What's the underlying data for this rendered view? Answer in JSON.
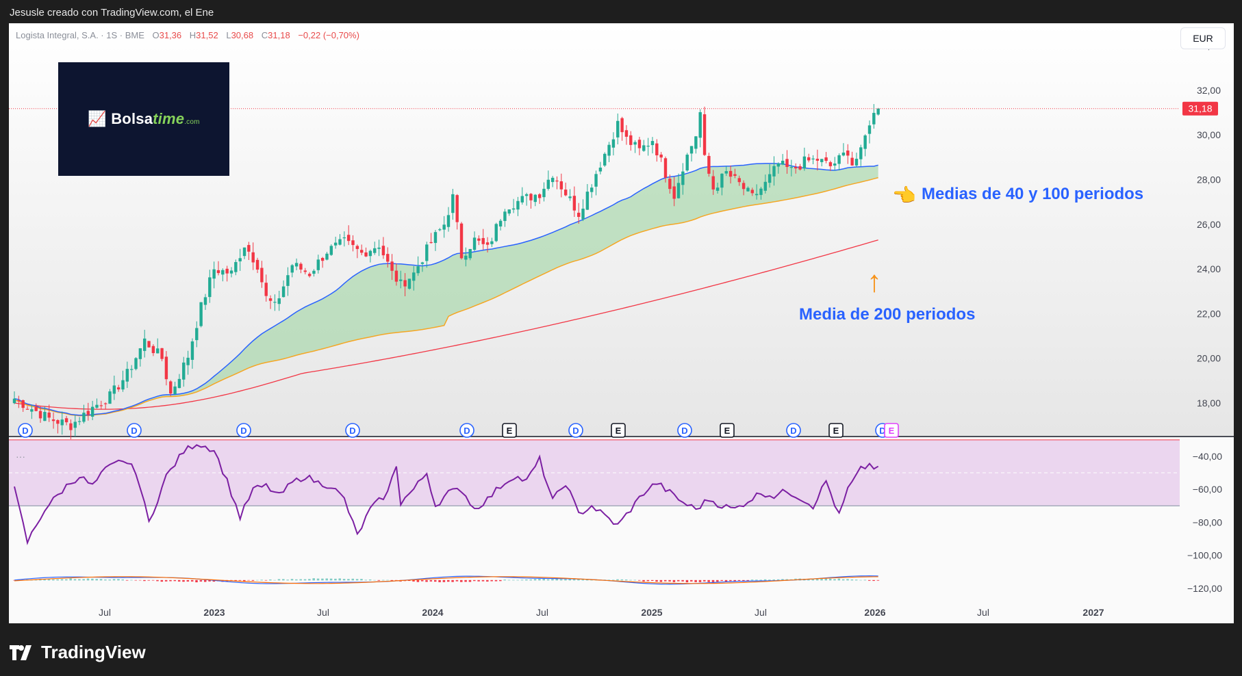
{
  "header": {
    "caption": "Jesusle creado con TradingView.com, el Ene"
  },
  "legend": {
    "symbol": "Logista Integral, S.A. · 1S · BME",
    "open_key": "O",
    "open": "31,36",
    "high_key": "H",
    "high": "31,52",
    "low_key": "L",
    "low": "30,68",
    "close_key": "C",
    "close": "31,18",
    "change": "−0,22 (−0,70%)"
  },
  "currency": "EUR",
  "last_price_label": "31,18",
  "logo": {
    "brand_main": "Bolsa",
    "brand_accent": "time",
    "brand_suffix": ".com"
  },
  "annotations": {
    "ma_40_100": "Medias de 40 y 100 periodos",
    "ma_200": "Media de 200 periodos"
  },
  "footer": {
    "brand": "TradingView"
  },
  "colors": {
    "up": "#22ab94",
    "down": "#f23645",
    "ma40": "#2962ff",
    "ma100": "#f5a623",
    "ma200": "#f23645",
    "fill": "#a5d6a7",
    "rsi": "#7b1fa2",
    "rsi_band": "#e1bee7",
    "annotation": "#2962ff"
  },
  "chart_data": [
    {
      "type": "candlestick",
      "title": "",
      "x_ticks": [
        "Jul",
        "2023",
        "Jul",
        "2024",
        "Jul",
        "2025",
        "Jul",
        "2026",
        "Jul",
        "2027"
      ],
      "y_ticks": [
        "34,00",
        "32,00",
        "30,00",
        "28,00",
        "26,00",
        "24,00",
        "22,00",
        "20,00",
        "18,00"
      ],
      "ylim": [
        16.5,
        35.0
      ],
      "keypoints": [
        [
          0,
          18.2
        ],
        [
          8,
          17.3
        ],
        [
          13,
          17.0
        ],
        [
          18,
          17.8
        ],
        [
          22,
          18.3
        ],
        [
          26,
          19.3
        ],
        [
          30,
          20.8
        ],
        [
          34,
          20.0
        ],
        [
          36,
          18.4
        ],
        [
          40,
          20.1
        ],
        [
          43,
          22.3
        ],
        [
          46,
          24.0
        ],
        [
          50,
          23.8
        ],
        [
          53,
          25.1
        ],
        [
          56,
          24.2
        ],
        [
          58,
          22.7
        ],
        [
          60,
          22.3
        ],
        [
          64,
          24.2
        ],
        [
          68,
          23.8
        ],
        [
          72,
          24.8
        ],
        [
          76,
          25.2
        ],
        [
          80,
          24.7
        ],
        [
          84,
          25.1
        ],
        [
          87,
          23.8
        ],
        [
          89,
          23.3
        ],
        [
          92,
          23.8
        ],
        [
          96,
          25.2
        ],
        [
          99,
          26.0
        ],
        [
          101,
          27.2
        ],
        [
          103,
          24.6
        ],
        [
          106,
          25.3
        ],
        [
          109,
          24.9
        ],
        [
          113,
          26.8
        ],
        [
          117,
          27.1
        ],
        [
          121,
          27.4
        ],
        [
          124,
          28.3
        ],
        [
          127,
          27.4
        ],
        [
          130,
          26.5
        ],
        [
          134,
          28.3
        ],
        [
          137,
          29.6
        ],
        [
          139,
          30.5
        ],
        [
          141,
          29.8
        ],
        [
          144,
          29.3
        ],
        [
          147,
          29.8
        ],
        [
          150,
          28.3
        ],
        [
          152,
          27.3
        ],
        [
          154,
          28.6
        ],
        [
          157,
          30.0
        ],
        [
          158,
          31.0
        ],
        [
          159,
          28.9
        ],
        [
          161,
          27.6
        ],
        [
          164,
          28.3
        ],
        [
          167,
          27.8
        ],
        [
          170,
          27.2
        ],
        [
          173,
          27.8
        ],
        [
          176,
          28.7
        ],
        [
          179,
          28.4
        ],
        [
          182,
          28.8
        ],
        [
          185,
          28.9
        ],
        [
          188,
          28.6
        ],
        [
          190,
          28.9
        ],
        [
          192,
          29.3
        ],
        [
          193,
          28.7
        ],
        [
          195,
          29.2
        ],
        [
          197,
          30.6
        ],
        [
          199,
          31.2
        ]
      ],
      "date_marker_labels": [
        "D",
        "D",
        "D",
        "D",
        "D",
        "E",
        "D",
        "E",
        "D",
        "E",
        "D",
        "E",
        "D",
        "E"
      ]
    },
    {
      "type": "line",
      "title": "",
      "y_ticks": [
        "−40,00",
        "−60,00",
        "−80,00",
        "−100,00",
        "−120,00"
      ],
      "keypoints": [
        [
          0,
          -60
        ],
        [
          3,
          -92
        ],
        [
          7,
          -72
        ],
        [
          12,
          -58
        ],
        [
          15,
          -52
        ],
        [
          18,
          -58
        ],
        [
          21,
          -48
        ],
        [
          25,
          -42
        ],
        [
          28,
          -49
        ],
        [
          31,
          -80
        ],
        [
          35,
          -52
        ],
        [
          39,
          -37
        ],
        [
          42,
          -32
        ],
        [
          46,
          -36
        ],
        [
          49,
          -55
        ],
        [
          52,
          -77
        ],
        [
          55,
          -60
        ],
        [
          58,
          -58
        ],
        [
          61,
          -64
        ],
        [
          64,
          -56
        ],
        [
          67,
          -52
        ],
        [
          70,
          -56
        ],
        [
          73,
          -58
        ],
        [
          76,
          -66
        ],
        [
          79,
          -88
        ],
        [
          82,
          -72
        ],
        [
          86,
          -62
        ],
        [
          88,
          -45
        ],
        [
          89,
          -68
        ],
        [
          92,
          -60
        ],
        [
          95,
          -50
        ],
        [
          97,
          -70
        ],
        [
          100,
          -62
        ],
        [
          103,
          -60
        ],
        [
          106,
          -72
        ],
        [
          109,
          -66
        ],
        [
          112,
          -58
        ],
        [
          115,
          -52
        ],
        [
          118,
          -55
        ],
        [
          121,
          -42
        ],
        [
          124,
          -67
        ],
        [
          127,
          -56
        ],
        [
          130,
          -75
        ],
        [
          133,
          -70
        ],
        [
          136,
          -76
        ],
        [
          139,
          -82
        ],
        [
          142,
          -72
        ],
        [
          145,
          -62
        ],
        [
          148,
          -56
        ],
        [
          151,
          -62
        ],
        [
          154,
          -68
        ],
        [
          157,
          -72
        ],
        [
          160,
          -66
        ],
        [
          163,
          -70
        ],
        [
          166,
          -72
        ],
        [
          169,
          -67
        ],
        [
          172,
          -62
        ],
        [
          175,
          -64
        ],
        [
          178,
          -61
        ],
        [
          181,
          -65
        ],
        [
          184,
          -70
        ],
        [
          187,
          -55
        ],
        [
          190,
          -76
        ],
        [
          192,
          -60
        ],
        [
          195,
          -48
        ],
        [
          197,
          -45
        ],
        [
          199,
          -48
        ]
      ]
    }
  ]
}
